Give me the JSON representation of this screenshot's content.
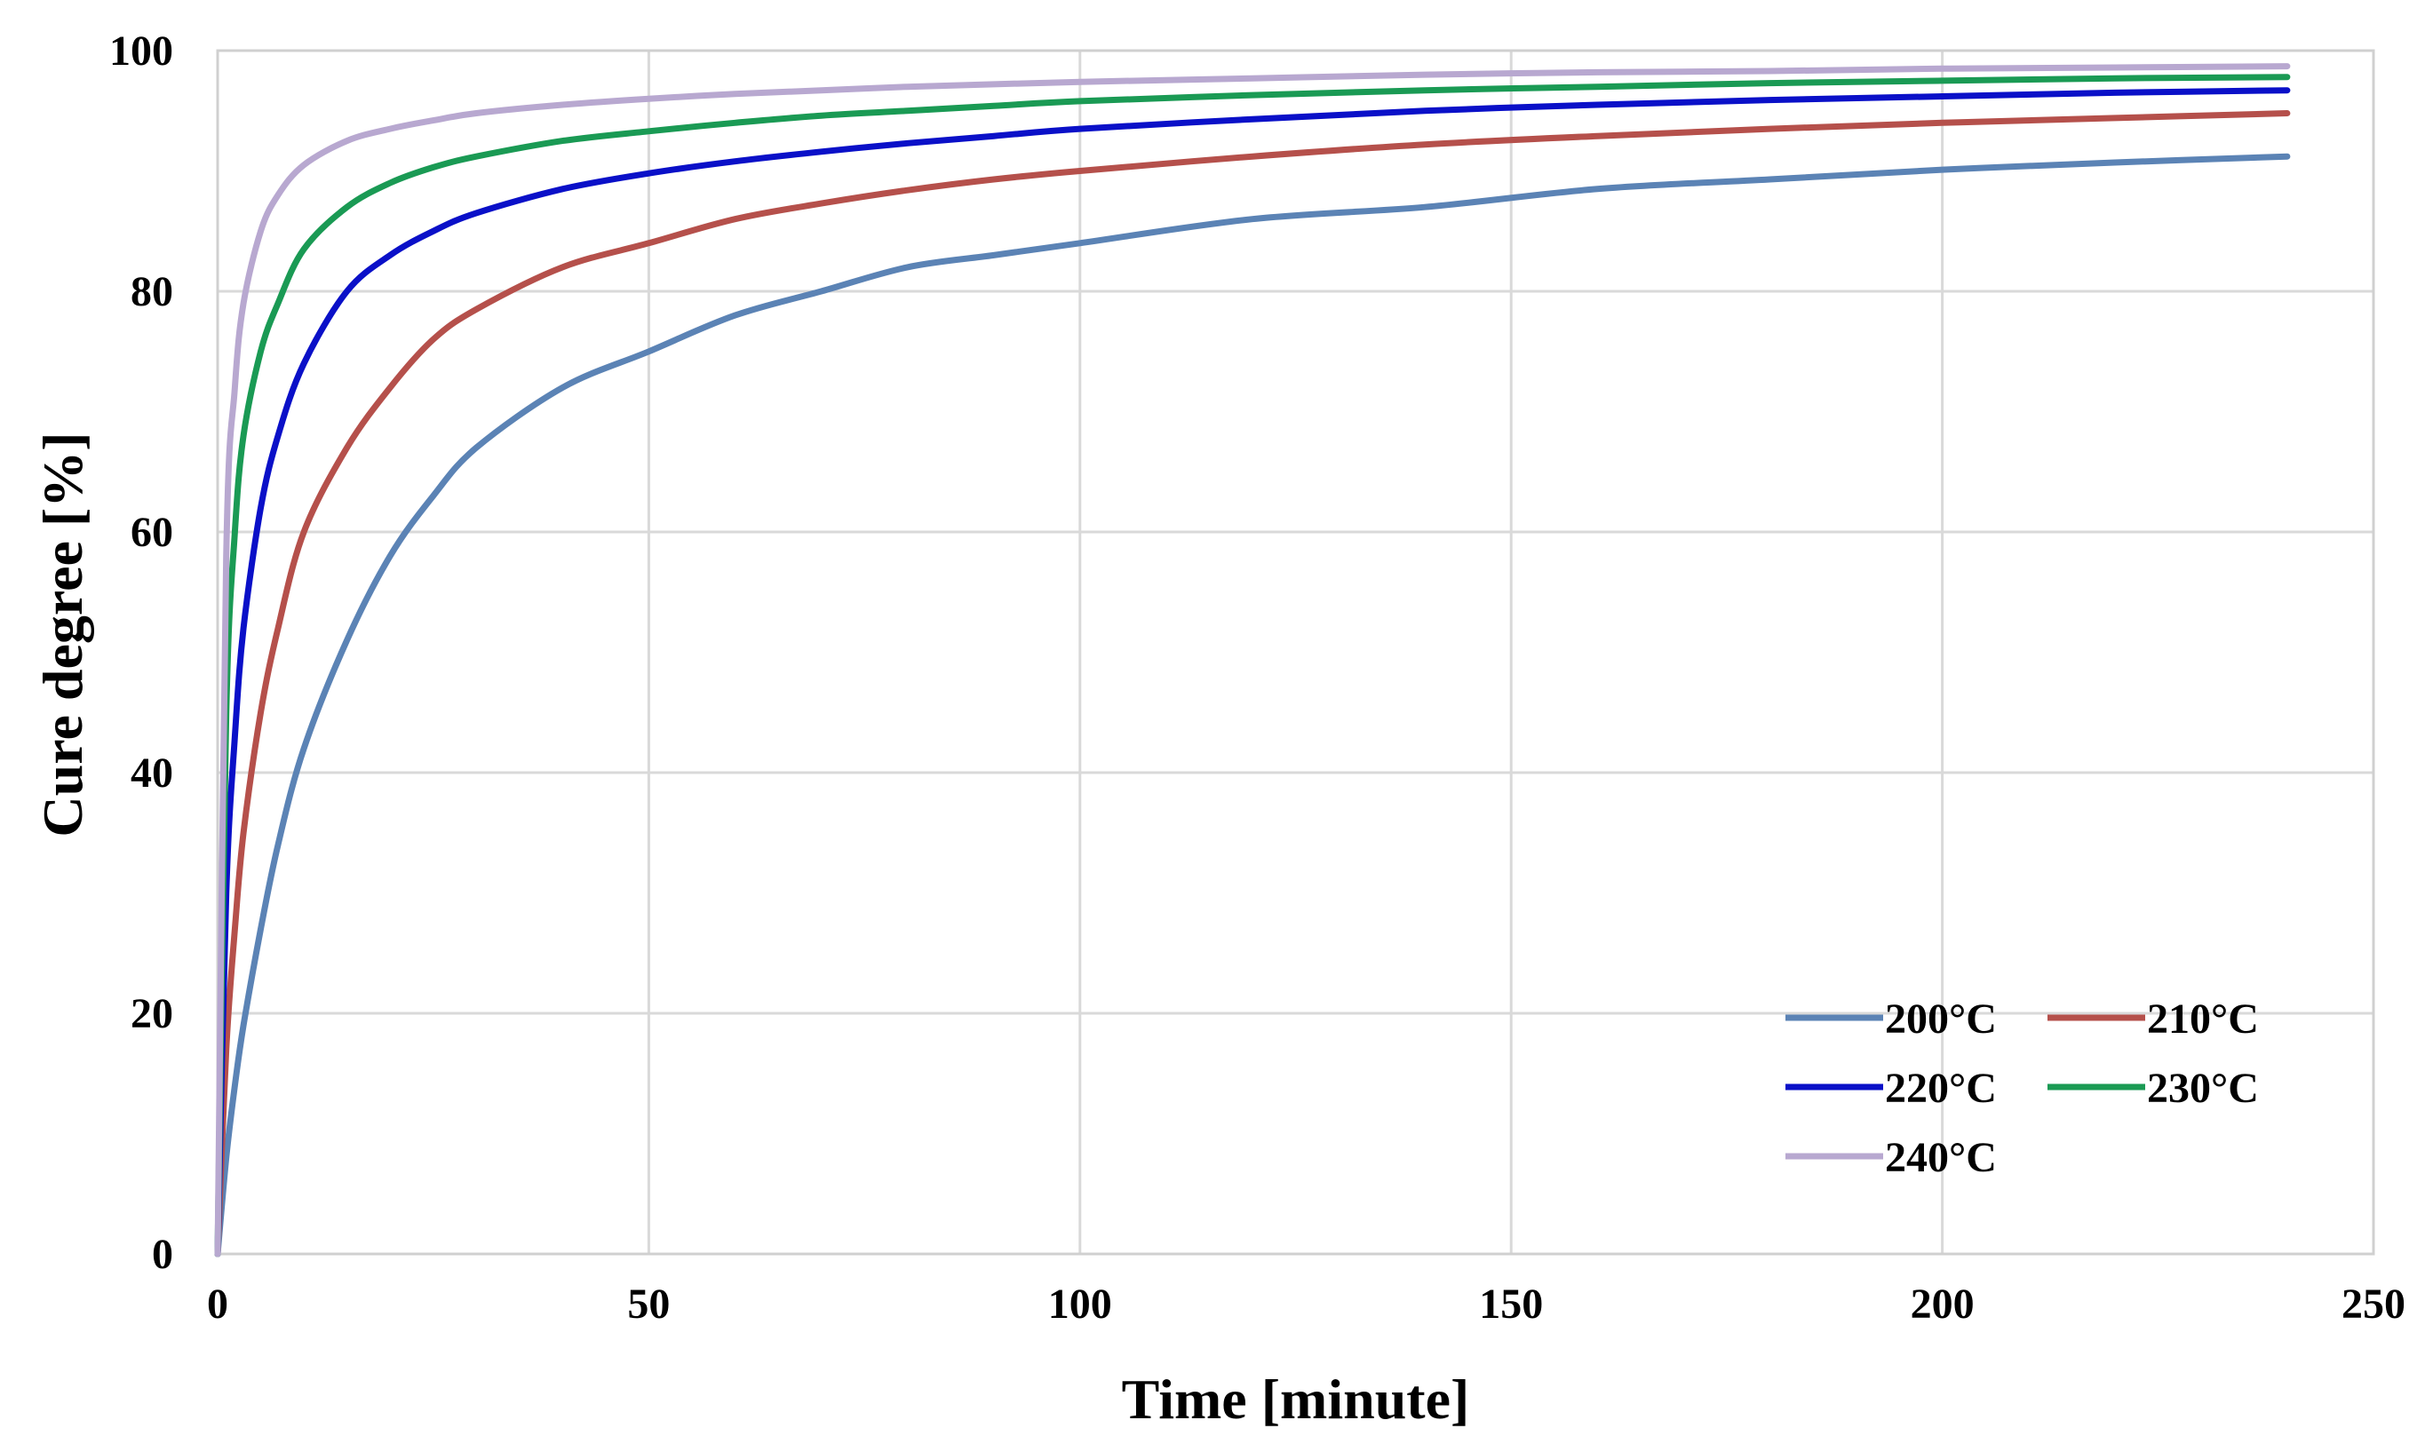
{
  "chart_data": {
    "type": "line",
    "title": "",
    "xlabel": "Time [minute]",
    "ylabel": "Cure degree [%]",
    "xlim": [
      0,
      250
    ],
    "ylim": [
      0,
      100
    ],
    "x_ticks": [
      "0",
      "50",
      "100",
      "150",
      "200",
      "250"
    ],
    "y_ticks": [
      "0",
      "20",
      "40",
      "60",
      "80",
      "100"
    ],
    "grid": true,
    "legend_position": "bottom-right",
    "x": [
      0,
      1,
      2,
      3,
      5,
      7,
      10,
      15,
      20,
      25,
      30,
      40,
      50,
      60,
      70,
      80,
      90,
      100,
      120,
      140,
      160,
      180,
      200,
      220,
      240
    ],
    "series": [
      {
        "name": "200°C",
        "color": "#5b83b5",
        "values": [
          0,
          8,
          14,
          19,
          27,
          34,
          42,
          51,
          58,
          63,
          67,
          72,
          75,
          78,
          80,
          82,
          83,
          84,
          86,
          87,
          88.5,
          89.3,
          90.1,
          90.7,
          91.2
        ]
      },
      {
        "name": "210°C",
        "color": "#b5504b",
        "values": [
          0,
          17,
          27,
          35,
          45,
          52,
          60,
          67,
          72,
          76,
          78.5,
          82,
          84,
          86,
          87.3,
          88.4,
          89.3,
          90,
          91.2,
          92.2,
          92.9,
          93.5,
          94,
          94.4,
          94.8
        ]
      },
      {
        "name": "220°C",
        "color": "#0a10c8",
        "values": [
          0,
          30,
          43,
          52,
          62,
          68,
          74,
          80,
          83,
          85,
          86.5,
          88.5,
          89.8,
          90.8,
          91.6,
          92.3,
          92.9,
          93.5,
          94.3,
          95,
          95.5,
          95.9,
          96.2,
          96.5,
          96.7
        ]
      },
      {
        "name": "230°C",
        "color": "#1a9a54",
        "values": [
          0,
          45,
          60,
          68,
          75,
          79,
          83.5,
          87,
          89,
          90.3,
          91.2,
          92.5,
          93.3,
          94,
          94.6,
          95,
          95.4,
          95.8,
          96.3,
          96.7,
          97,
          97.3,
          97.5,
          97.7,
          97.8
        ]
      },
      {
        "name": "240°C",
        "color": "#b8a8d0",
        "values": [
          0,
          58,
          72,
          79,
          85,
          88,
          90.5,
          92.5,
          93.5,
          94.2,
          94.8,
          95.5,
          96,
          96.4,
          96.7,
          97,
          97.2,
          97.4,
          97.7,
          98,
          98.2,
          98.3,
          98.5,
          98.6,
          98.7
        ]
      }
    ]
  }
}
